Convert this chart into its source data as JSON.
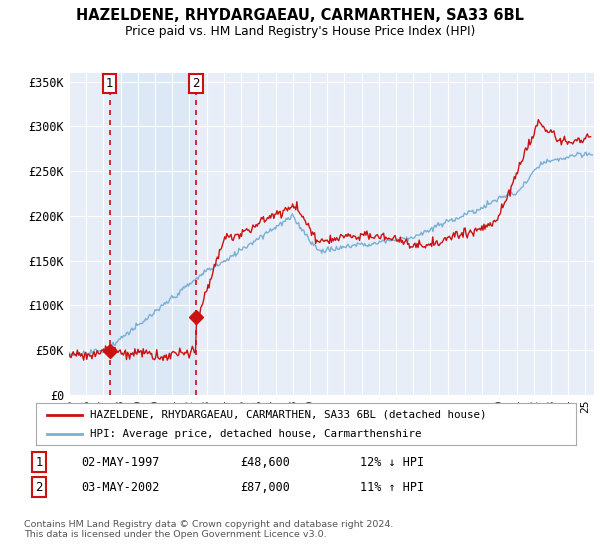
{
  "title": "HAZELDENE, RHYDARGAEAU, CARMARTHEN, SA33 6BL",
  "subtitle": "Price paid vs. HM Land Registry's House Price Index (HPI)",
  "sale1_date": "02-MAY-1997",
  "sale1_price": 48600,
  "sale1_label": "12% ↓ HPI",
  "sale2_date": "03-MAY-2002",
  "sale2_price": 87000,
  "sale2_label": "11% ↑ HPI",
  "legend_line1": "HAZELDENE, RHYDARGAEAU, CARMARTHEN, SA33 6BL (detached house)",
  "legend_line2": "HPI: Average price, detached house, Carmarthenshire",
  "footer": "Contains HM Land Registry data © Crown copyright and database right 2024.\nThis data is licensed under the Open Government Licence v3.0.",
  "hpi_color": "#7bafd4",
  "price_color": "#cc1111",
  "vline_color": "#cc1111",
  "shade_color": "#dce8f5",
  "background_color": "#e8eef8",
  "ylim": [
    0,
    360000
  ],
  "yticks": [
    0,
    50000,
    100000,
    150000,
    200000,
    250000,
    300000,
    350000
  ],
  "ytick_labels": [
    "£0",
    "£50K",
    "£100K",
    "£150K",
    "£200K",
    "£250K",
    "£300K",
    "£350K"
  ],
  "xstart": 1995.0,
  "xend": 2025.5,
  "sale1_year": 1997.37,
  "sale2_year": 2002.37
}
